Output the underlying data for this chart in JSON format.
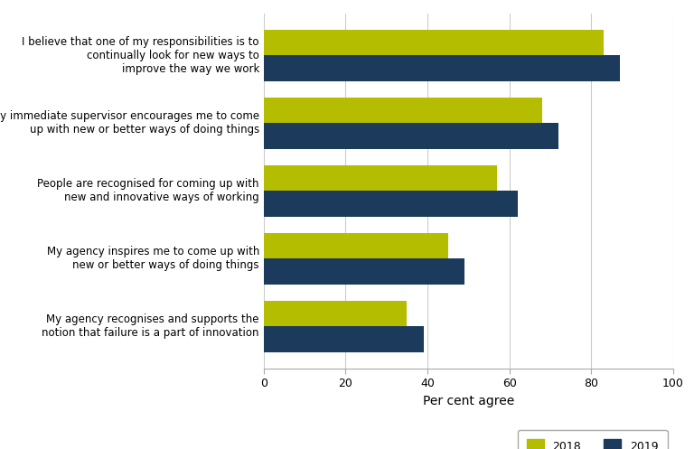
{
  "categories": [
    "My agency recognises and supports the\nnotion that failure is a part of innovation",
    "My agency inspires me to come up with\nnew or better ways of doing things",
    "People are recognised for coming up with\nnew and innovative ways of working",
    "My immediate supervisor encourages me to come\nup with new or better ways of doing things",
    "I believe that one of my responsibilities is to\ncontinually look for new ways to\nimprove the way we work"
  ],
  "values_2018": [
    35,
    45,
    57,
    68,
    83
  ],
  "values_2019": [
    39,
    49,
    62,
    72,
    87
  ],
  "color_2018": "#b5bd00",
  "color_2019": "#1b3a5c",
  "xlabel": "Per cent agree",
  "xlim": [
    0,
    100
  ],
  "xticks": [
    0,
    20,
    40,
    60,
    80,
    100
  ],
  "legend_labels": [
    "2018",
    "2019"
  ],
  "background_color": "#ffffff",
  "bar_height": 0.38,
  "grid_color": "#cccccc"
}
